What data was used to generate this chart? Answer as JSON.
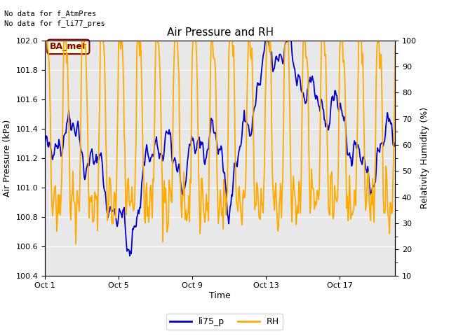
{
  "title": "Air Pressure and RH",
  "xlabel": "Time",
  "ylabel_left": "Air Pressure (kPa)",
  "ylabel_right": "Relativity Humidity (%)",
  "legend_labels": [
    "li75_p",
    "RH"
  ],
  "line_colors": [
    "#0000cc",
    "#ffaa00"
  ],
  "annotation_text": "No data for f_AtmPres\nNo data for f_li77_pres",
  "badge_text": "BA_met",
  "ylim_left": [
    100.4,
    102.0
  ],
  "ylim_right": [
    10,
    100
  ],
  "yticks_left": [
    100.4,
    100.6,
    100.8,
    101.0,
    101.2,
    101.4,
    101.6,
    101.8,
    102.0
  ],
  "yticks_right": [
    10,
    20,
    30,
    40,
    50,
    60,
    70,
    80,
    90,
    100
  ],
  "x_tick_labels": [
    "Oct 1",
    "Oct 5",
    "Oct 9",
    "Oct 13",
    "Oct 17"
  ],
  "x_tick_positions": [
    0,
    4,
    8,
    12,
    16
  ],
  "total_days": 19,
  "plot_bg_color": "#e8e8e8",
  "fig_bg_color": "#ffffff",
  "grid_color": "#ffffff",
  "title_fontsize": 11,
  "axis_label_fontsize": 9,
  "tick_fontsize": 8,
  "legend_fontsize": 9,
  "annotation_fontsize": 7.5
}
